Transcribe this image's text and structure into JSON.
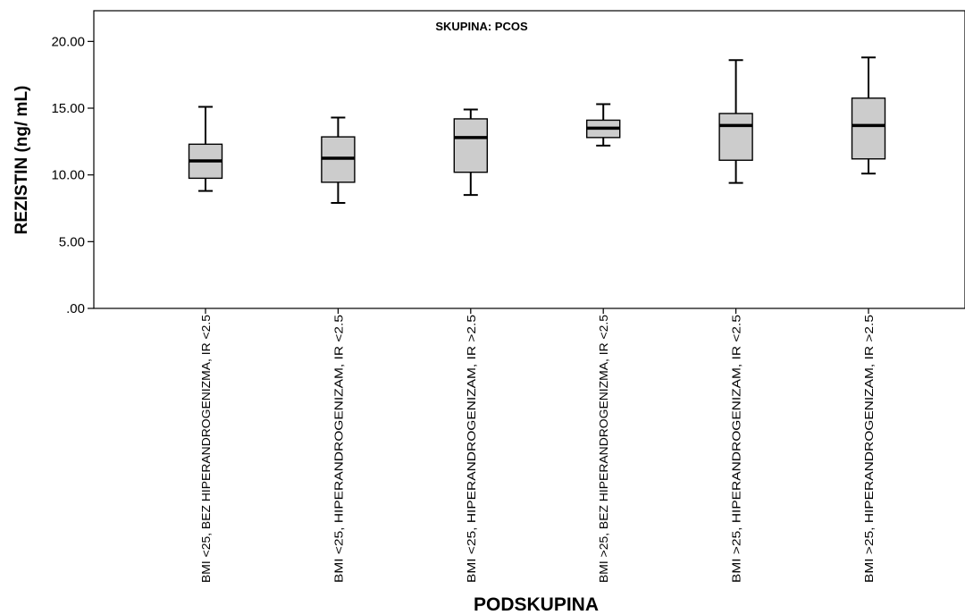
{
  "chart_data": {
    "type": "boxplot",
    "title": "SKUPINA: PCOS",
    "xlabel": "PODSKUPINA",
    "ylabel": "REZISTIN (ng/ mL)",
    "ylim": [
      0,
      22.3
    ],
    "yticks": [
      0,
      5,
      10,
      15,
      20
    ],
    "ytick_labels": [
      ".00",
      "5.00",
      "10.00",
      "15.00",
      "20.00"
    ],
    "grid": false,
    "box_color": "#cccccc",
    "categories": [
      "BMI <25, BEZ HIPERANDROGENIZMA, IR <2.5",
      "BMI <25, HIPERANDROGENIZAM, IR <2.5",
      "BMI <25, HIPERANDROGENIZAM, IR >2.5",
      "BMI >25, BEZ HIPERANDROGENIZMA, IR <2.5",
      "BMI >25, HIPERANDROGENIZAM, IR <2.5",
      "BMI >25, HIPERANDROGENIZAM, IR >2.5"
    ],
    "boxes": [
      {
        "min": 8.8,
        "q1": 9.75,
        "median": 11.05,
        "q3": 12.3,
        "max": 15.1
      },
      {
        "min": 7.9,
        "q1": 9.45,
        "median": 11.25,
        "q3": 12.85,
        "max": 14.3
      },
      {
        "min": 8.5,
        "q1": 10.2,
        "median": 12.8,
        "q3": 14.2,
        "max": 14.9
      },
      {
        "min": 12.2,
        "q1": 12.8,
        "median": 13.5,
        "q3": 14.1,
        "max": 15.3
      },
      {
        "min": 9.4,
        "q1": 11.1,
        "median": 13.7,
        "q3": 14.6,
        "max": 18.6
      },
      {
        "min": 10.1,
        "q1": 11.2,
        "median": 13.7,
        "q3": 15.75,
        "max": 18.8
      }
    ]
  }
}
